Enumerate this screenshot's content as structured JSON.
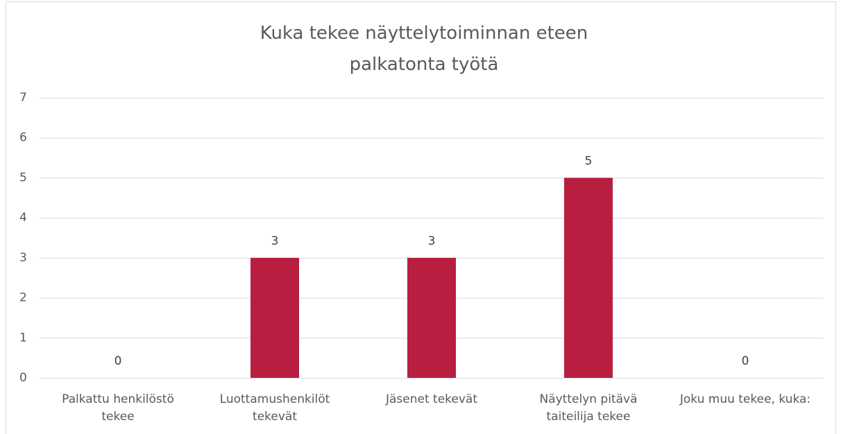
{
  "chart_data": {
    "type": "bar",
    "title": "Kuka tekee näyttelytoiminnan eteen palkatonta työtä",
    "categories": [
      "Palkattu henkilöstö tekee",
      "Luottamushenkilöt tekevät",
      "Jäsenet tekevät",
      "Näyttelyn pitävä taiteilija tekee",
      "Joku muu tekee, kuka:"
    ],
    "values": [
      0,
      3,
      3,
      5,
      0
    ],
    "color": "#b81e40",
    "ylim": [
      0,
      7
    ],
    "yticks": [
      0,
      1,
      2,
      3,
      4,
      5,
      6,
      7
    ],
    "grid": true
  }
}
